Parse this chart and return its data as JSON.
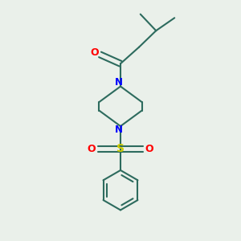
{
  "background_color": "#eaf0ea",
  "bond_color": "#2d6b5e",
  "nitrogen_color": "#0000ff",
  "oxygen_color": "#ff0000",
  "sulfur_color": "#cccc00",
  "line_width": 1.5,
  "figsize": [
    3.0,
    3.0
  ],
  "dpi": 100,
  "xlim": [
    0.25,
    0.75
  ],
  "ylim": [
    0.08,
    0.92
  ]
}
